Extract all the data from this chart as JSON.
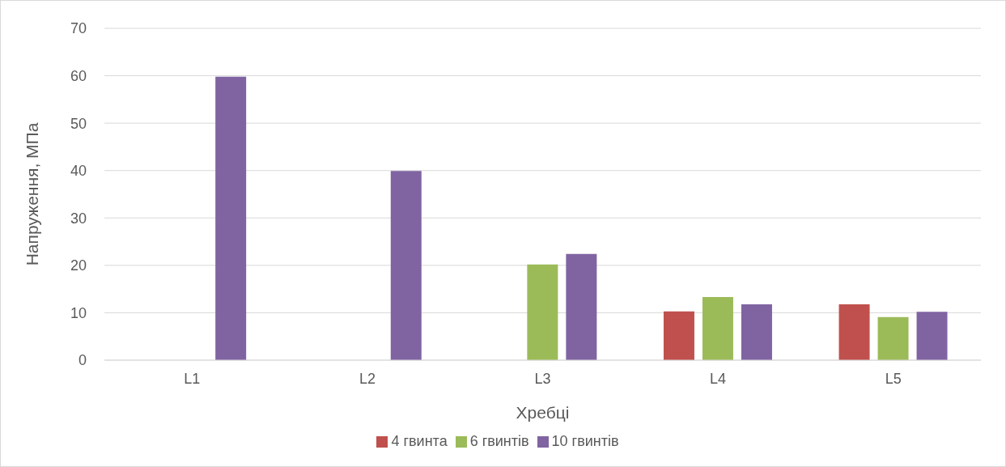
{
  "chart_data": {
    "type": "bar",
    "xlabel": "Хребці",
    "ylabel": "Напруження, МПа",
    "categories": [
      "L1",
      "L2",
      "L3",
      "L4",
      "L5"
    ],
    "series": [
      {
        "name": "4 гвинта",
        "color": "#c0504d",
        "values": [
          null,
          null,
          null,
          10.3,
          11.8
        ]
      },
      {
        "name": "6 гвинтів",
        "color": "#9bbb59",
        "values": [
          null,
          null,
          20.2,
          13.3,
          9.1
        ]
      },
      {
        "name": "10 гвинтів",
        "color": "#8064a2",
        "values": [
          59.8,
          39.9,
          22.4,
          11.8,
          10.2
        ]
      }
    ],
    "ylim": [
      0,
      70
    ],
    "yticks": [
      0,
      10,
      20,
      30,
      40,
      50,
      60,
      70
    ],
    "grid": "y",
    "legend": "bottom"
  }
}
